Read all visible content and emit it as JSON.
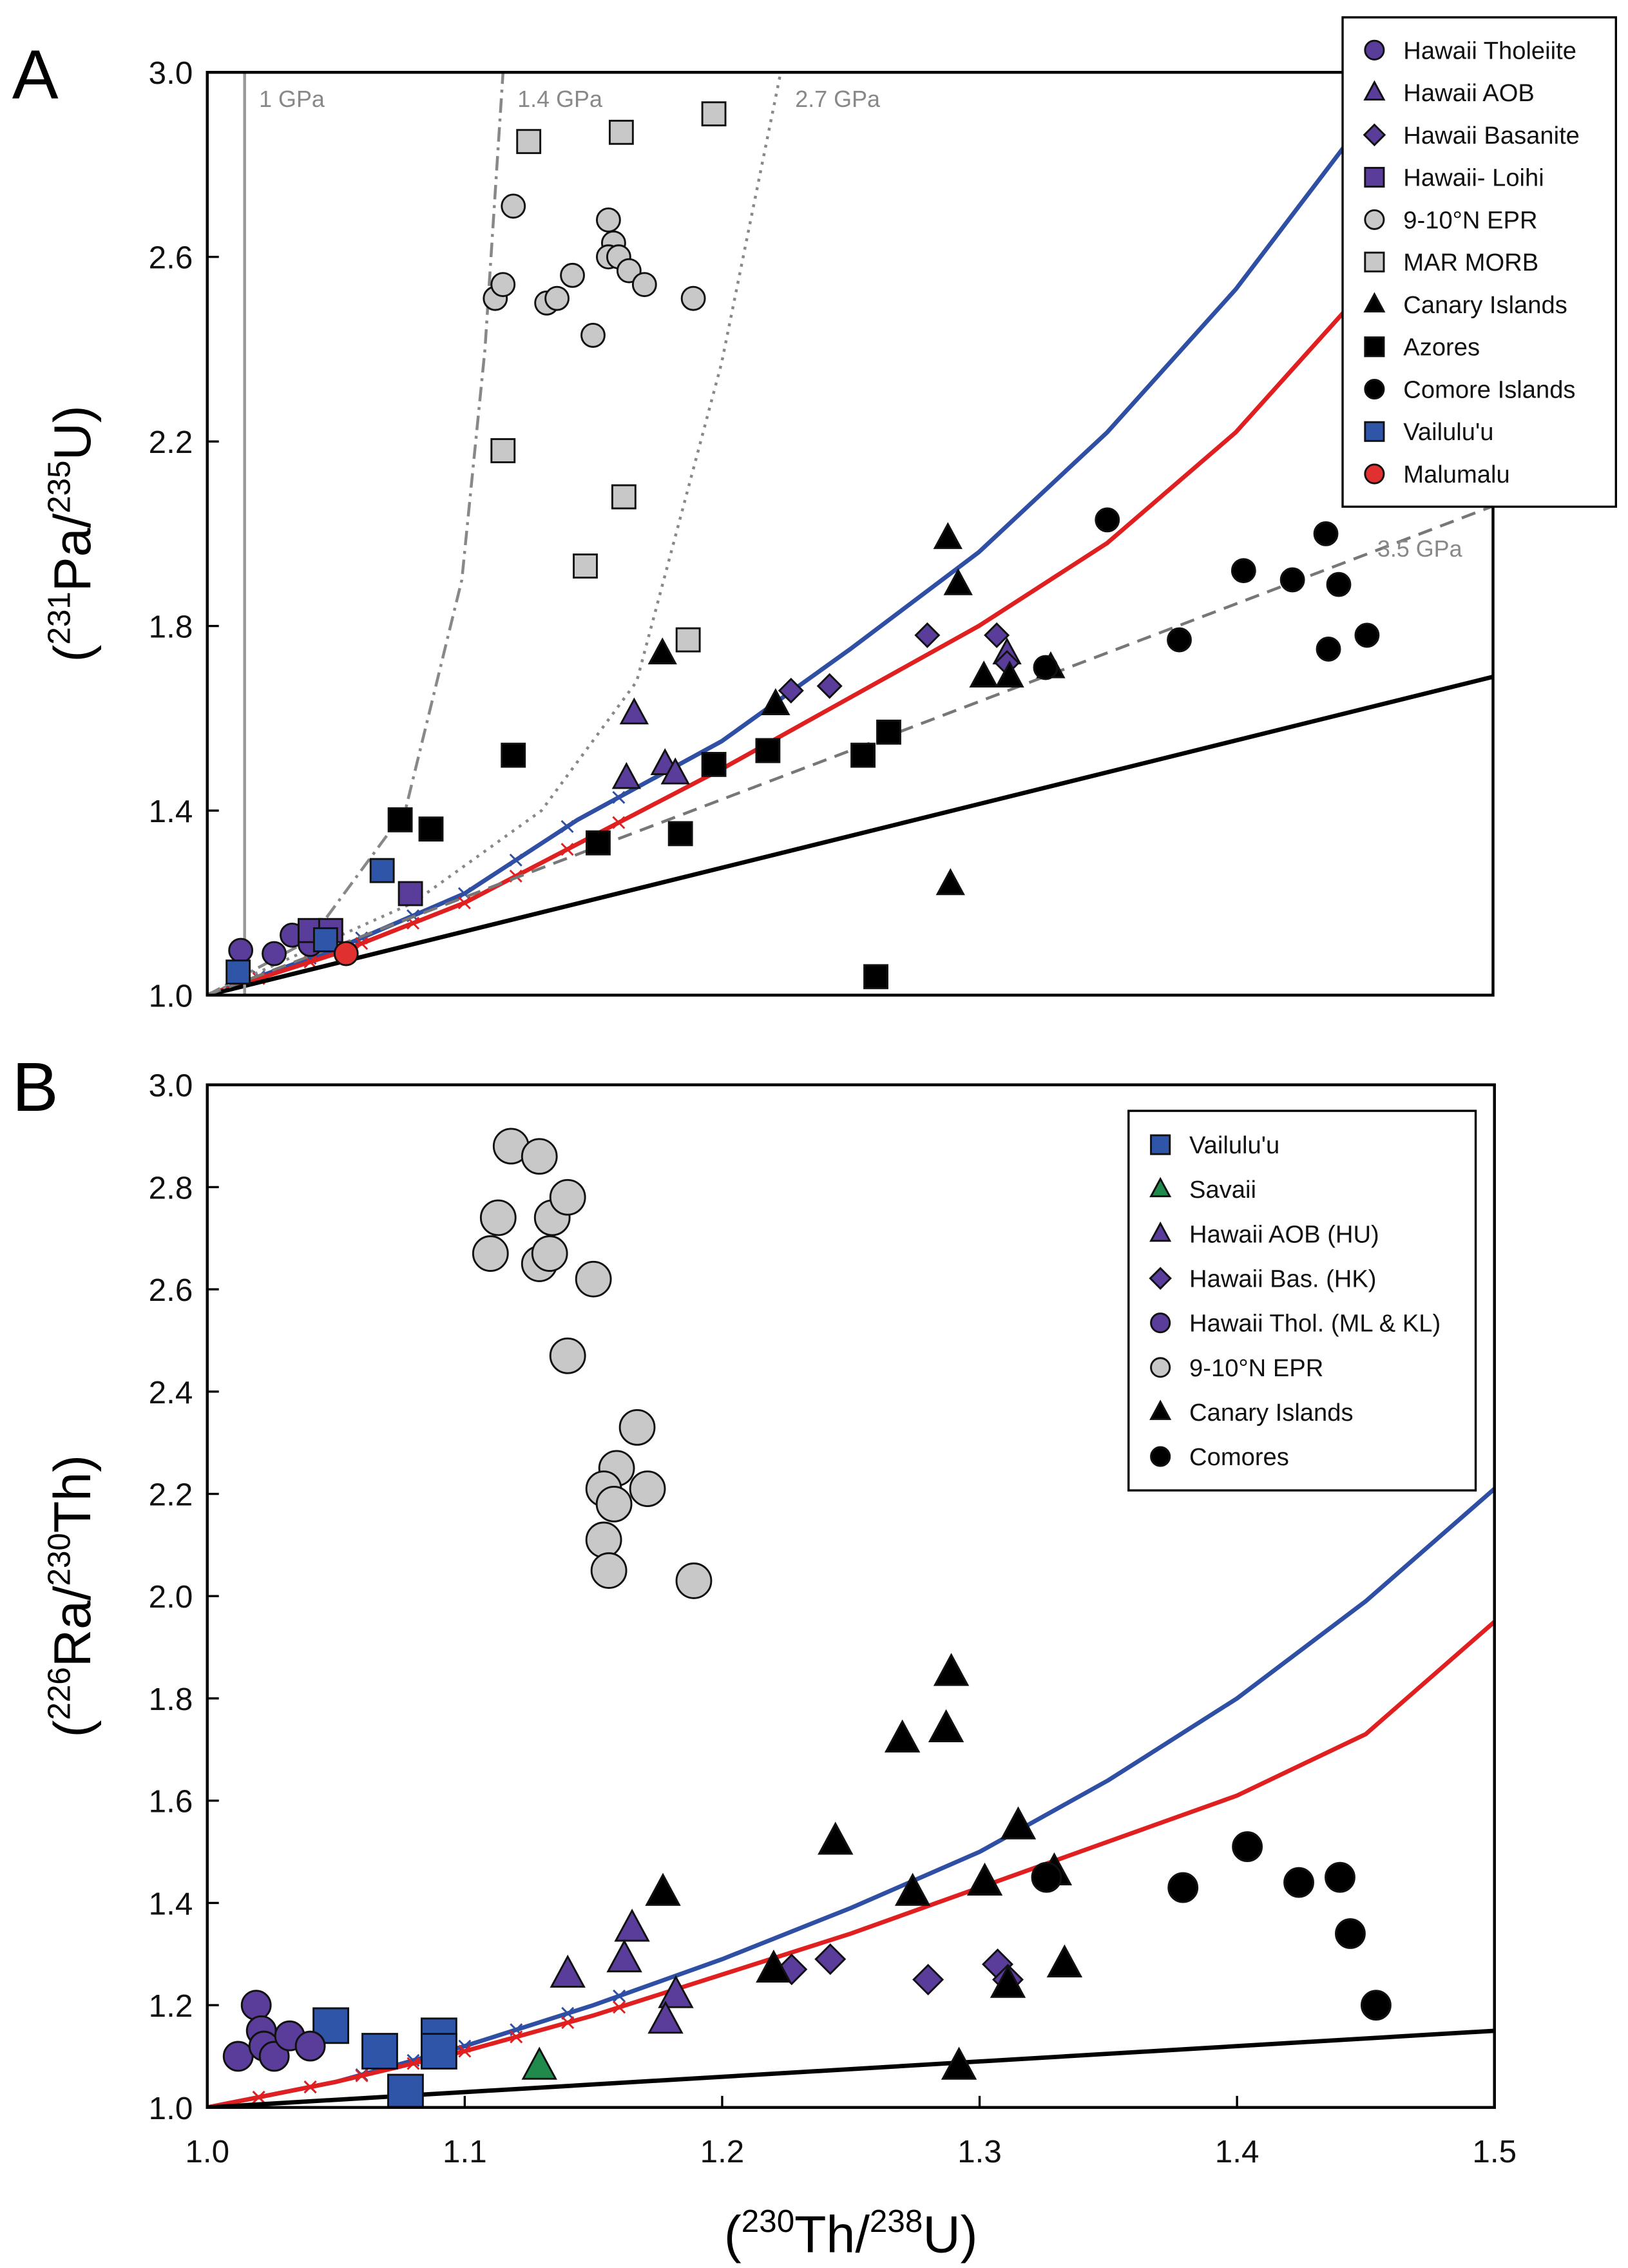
{
  "chart_data": [
    {
      "type": "scatter",
      "panel_label": "A",
      "xlim": [
        1.0,
        1.5
      ],
      "ylim": [
        1.0,
        3.0
      ],
      "yticks": [
        "1.0",
        "1.4",
        "1.8",
        "2.2",
        "2.6",
        "3.0"
      ],
      "ytick_values": [
        1.0,
        1.4,
        1.8,
        2.2,
        2.6,
        3.0
      ],
      "ylabel_parts": [
        "(",
        "231",
        "Pa",
        "/",
        "235",
        "U",
        ")"
      ],
      "legend_placement": "top-right-outside",
      "series": [
        {
          "name": "Hawaii Tholeiite",
          "marker": "circle",
          "color": "#5a3d9a",
          "points": [
            [
              1.013,
              1.097
            ],
            [
              1.026,
              1.09
            ],
            [
              1.033,
              1.13
            ],
            [
              1.04,
              1.11
            ]
          ]
        },
        {
          "name": "Hawaii AOB",
          "marker": "triangle",
          "color": "#5a3d9a",
          "points": [
            [
              1.166,
              1.61
            ],
            [
              1.163,
              1.47
            ],
            [
              1.178,
              1.5
            ],
            [
              1.182,
              1.48
            ],
            [
              1.311,
              1.74
            ]
          ]
        },
        {
          "name": "Hawaii Basanite",
          "marker": "diamond",
          "color": "#5a3d9a",
          "points": [
            [
              1.227,
              1.66
            ],
            [
              1.242,
              1.67
            ],
            [
              1.28,
              1.78
            ],
            [
              1.307,
              1.78
            ],
            [
              1.311,
              1.72
            ]
          ]
        },
        {
          "name": "Hawaii- Loihi",
          "marker": "square",
          "color": "#5a3d9a",
          "points": [
            [
              1.04,
              1.14
            ],
            [
              1.048,
              1.14
            ],
            [
              1.079,
              1.22
            ]
          ]
        },
        {
          "name": "9-10°N EPR",
          "marker": "circle",
          "color": "#c8c8c8",
          "points": [
            [
              1.119,
              2.71
            ],
            [
              1.112,
              2.51
            ],
            [
              1.115,
              2.54
            ],
            [
              1.132,
              2.5
            ],
            [
              1.136,
              2.51
            ],
            [
              1.142,
              2.56
            ],
            [
              1.15,
              2.43
            ],
            [
              1.156,
              2.68
            ],
            [
              1.158,
              2.63
            ],
            [
              1.156,
              2.6
            ],
            [
              1.16,
              2.6
            ],
            [
              1.164,
              2.57
            ],
            [
              1.17,
              2.54
            ],
            [
              1.189,
              2.51
            ]
          ]
        },
        {
          "name": "MAR MORB",
          "marker": "square",
          "color": "#c8c8c8",
          "points": [
            [
              1.125,
              2.85
            ],
            [
              1.161,
              2.87
            ],
            [
              1.197,
              2.91
            ],
            [
              1.115,
              2.18
            ],
            [
              1.162,
              2.08
            ],
            [
              1.147,
              1.93
            ],
            [
              1.187,
              1.77
            ]
          ]
        },
        {
          "name": "Canary Islands",
          "marker": "triangle",
          "color": "#000000",
          "points": [
            [
              1.288,
              1.99
            ],
            [
              1.292,
              1.89
            ],
            [
              1.221,
              1.63
            ],
            [
              1.302,
              1.69
            ],
            [
              1.312,
              1.69
            ],
            [
              1.328,
              1.71
            ],
            [
              1.289,
              1.24
            ],
            [
              1.177,
              1.74
            ]
          ]
        },
        {
          "name": "Azores",
          "marker": "square",
          "color": "#000000",
          "points": [
            [
              1.119,
              1.52
            ],
            [
              1.075,
              1.38
            ],
            [
              1.087,
              1.36
            ],
            [
              1.152,
              1.33
            ],
            [
              1.184,
              1.35
            ],
            [
              1.197,
              1.5
            ],
            [
              1.218,
              1.53
            ],
            [
              1.255,
              1.52
            ],
            [
              1.265,
              1.57
            ],
            [
              1.26,
              1.04
            ]
          ]
        },
        {
          "name": "Comore Islands",
          "marker": "circle",
          "color": "#000000",
          "points": [
            [
              1.35,
              2.03
            ],
            [
              1.403,
              1.92
            ],
            [
              1.435,
              2.0
            ],
            [
              1.422,
              1.9
            ],
            [
              1.44,
              1.89
            ],
            [
              1.378,
              1.77
            ],
            [
              1.436,
              1.75
            ],
            [
              1.451,
              1.78
            ],
            [
              1.326,
              1.71
            ]
          ]
        },
        {
          "name": "Vailulu'u",
          "marker": "square",
          "color": "#2e55a8",
          "points": [
            [
              1.012,
              1.05
            ],
            [
              1.068,
              1.27
            ],
            [
              1.046,
              1.12
            ]
          ]
        },
        {
          "name": "Malumalu",
          "marker": "circle",
          "color": "#e03030",
          "points": [
            [
              1.054,
              1.09
            ]
          ]
        }
      ],
      "curves": [
        {
          "name": "blue-model",
          "color": "#2e4fa3",
          "style": "solid",
          "points": [
            [
              1,
              1
            ],
            [
              1.05,
              1.1
            ],
            [
              1.1,
              1.22
            ],
            [
              1.144,
              1.38
            ],
            [
              1.2,
              1.55
            ],
            [
              1.25,
              1.75
            ],
            [
              1.3,
              1.96
            ],
            [
              1.35,
              2.22
            ],
            [
              1.4,
              2.53
            ],
            [
              1.445,
              2.86
            ]
          ]
        },
        {
          "name": "red-model",
          "color": "#e02020",
          "style": "solid",
          "points": [
            [
              1,
              1
            ],
            [
              1.05,
              1.09
            ],
            [
              1.1,
              1.2
            ],
            [
              1.2,
              1.49
            ],
            [
              1.3,
              1.8
            ],
            [
              1.35,
              1.98
            ],
            [
              1.4,
              2.22
            ],
            [
              1.45,
              2.53
            ]
          ]
        },
        {
          "name": "secular-line",
          "color": "#000000",
          "style": "solid",
          "points": [
            [
              1,
              1
            ],
            [
              1.5,
              1.69
            ]
          ]
        },
        {
          "name": "3.5 GPa",
          "label": "3.5 GPa",
          "color": "#777777",
          "style": "dash",
          "points": [
            [
              1,
              1
            ],
            [
              1.5,
              2.06
            ]
          ]
        },
        {
          "name": "1 GPa",
          "label": "1 GPa",
          "color": "#999999",
          "style": "solid",
          "points": [
            [
              1.0145,
              1.0
            ],
            [
              1.0145,
              3.0
            ]
          ]
        },
        {
          "name": "1.4 GPa",
          "label": "1.4 GPa",
          "color": "#888888",
          "style": "dashdot",
          "points": [
            [
              1,
              1
            ],
            [
              1.04,
              1.12
            ],
            [
              1.077,
              1.4
            ],
            [
              1.099,
              1.9
            ],
            [
              1.108,
              2.4
            ],
            [
              1.115,
              3.0
            ]
          ]
        },
        {
          "name": "2.7 GPa",
          "label": "2.7 GPa",
          "color": "#888888",
          "style": "dot",
          "points": [
            [
              1,
              1
            ],
            [
              1.08,
              1.2
            ],
            [
              1.13,
              1.4
            ],
            [
              1.167,
              1.68
            ],
            [
              1.2,
              2.37
            ],
            [
              1.223,
              3.0
            ]
          ]
        }
      ]
    },
    {
      "type": "scatter",
      "panel_label": "B",
      "xlim": [
        1.0,
        1.5
      ],
      "ylim": [
        1.0,
        3.0
      ],
      "xticks": [
        "1.0",
        "1.1",
        "1.2",
        "1.3",
        "1.4",
        "1.5"
      ],
      "xtick_values": [
        1.0,
        1.1,
        1.2,
        1.3,
        1.4,
        1.5
      ],
      "yticks": [
        "1.0",
        "1.2",
        "1.4",
        "1.6",
        "1.8",
        "2.0",
        "2.2",
        "2.4",
        "2.6",
        "2.8",
        "3.0"
      ],
      "ytick_values": [
        1.0,
        1.2,
        1.4,
        1.6,
        1.8,
        2.0,
        2.2,
        2.4,
        2.6,
        2.8,
        3.0
      ],
      "xlabel_parts": [
        "(",
        "230",
        "Th",
        "/",
        "238",
        "U",
        ")"
      ],
      "ylabel_parts": [
        "(",
        "226",
        "Ra",
        "/",
        "230",
        "Th",
        ")"
      ],
      "legend_placement": "top-right",
      "series": [
        {
          "name": "Vailulu'u",
          "marker": "square",
          "color": "#2e55a8",
          "points": [
            [
              1.048,
              1.16
            ],
            [
              1.067,
              1.11
            ],
            [
              1.077,
              1.03
            ],
            [
              1.09,
              1.14
            ],
            [
              1.09,
              1.11
            ]
          ]
        },
        {
          "name": "Savaii",
          "marker": "triangle",
          "color": "#1f8a4c",
          "points": [
            [
              1.129,
              1.08
            ]
          ]
        },
        {
          "name": "Hawaii AOB (HU)",
          "marker": "triangle",
          "color": "#5a3d9a",
          "points": [
            [
              1.14,
              1.26
            ],
            [
              1.165,
              1.35
            ],
            [
              1.162,
              1.29
            ],
            [
              1.182,
              1.22
            ],
            [
              1.178,
              1.17
            ]
          ]
        },
        {
          "name": "Hawaii Bas. (HK)",
          "marker": "diamond",
          "color": "#5a3d9a",
          "points": [
            [
              1.227,
              1.27
            ],
            [
              1.242,
              1.29
            ],
            [
              1.28,
              1.25
            ],
            [
              1.307,
              1.28
            ],
            [
              1.311,
              1.25
            ]
          ]
        },
        {
          "name": "Hawaii Thol. (ML & KL)",
          "marker": "circle",
          "color": "#5a3d9a",
          "points": [
            [
              1.019,
              1.2
            ],
            [
              1.021,
              1.15
            ],
            [
              1.012,
              1.1
            ],
            [
              1.022,
              1.12
            ],
            [
              1.026,
              1.1
            ],
            [
              1.032,
              1.14
            ],
            [
              1.04,
              1.12
            ]
          ]
        },
        {
          "name": "9-10°N EPR",
          "marker": "circle",
          "color": "#c8c8c8",
          "points": [
            [
              1.118,
              2.88
            ],
            [
              1.129,
              2.86
            ],
            [
              1.113,
              2.74
            ],
            [
              1.134,
              2.74
            ],
            [
              1.14,
              2.78
            ],
            [
              1.11,
              2.67
            ],
            [
              1.129,
              2.65
            ],
            [
              1.133,
              2.67
            ],
            [
              1.15,
              2.62
            ],
            [
              1.14,
              2.47
            ],
            [
              1.167,
              2.33
            ],
            [
              1.159,
              2.25
            ],
            [
              1.154,
              2.21
            ],
            [
              1.171,
              2.21
            ],
            [
              1.158,
              2.18
            ],
            [
              1.154,
              2.11
            ],
            [
              1.156,
              2.05
            ],
            [
              1.189,
              2.03
            ]
          ]
        },
        {
          "name": "Canary Islands",
          "marker": "triangle",
          "color": "#000000",
          "points": [
            [
              1.289,
              1.85
            ],
            [
              1.287,
              1.74
            ],
            [
              1.27,
              1.72
            ],
            [
              1.244,
              1.52
            ],
            [
              1.315,
              1.55
            ],
            [
              1.177,
              1.42
            ],
            [
              1.274,
              1.42
            ],
            [
              1.302,
              1.44
            ],
            [
              1.329,
              1.46
            ],
            [
              1.22,
              1.27
            ],
            [
              1.333,
              1.28
            ],
            [
              1.311,
              1.24
            ],
            [
              1.292,
              1.08
            ]
          ]
        },
        {
          "name": "Comores",
          "marker": "circle",
          "color": "#000000",
          "points": [
            [
              1.404,
              1.51
            ],
            [
              1.379,
              1.43
            ],
            [
              1.424,
              1.44
            ],
            [
              1.44,
              1.45
            ],
            [
              1.444,
              1.34
            ],
            [
              1.454,
              1.2
            ],
            [
              1.326,
              1.45
            ]
          ]
        }
      ],
      "curves": [
        {
          "name": "blue-model",
          "color": "#2e4fa3",
          "style": "solid",
          "points": [
            [
              1,
              1
            ],
            [
              1.05,
              1.05
            ],
            [
              1.1,
              1.12
            ],
            [
              1.15,
              1.2
            ],
            [
              1.2,
              1.29
            ],
            [
              1.25,
              1.39
            ],
            [
              1.3,
              1.5
            ],
            [
              1.35,
              1.64
            ],
            [
              1.4,
              1.8
            ],
            [
              1.45,
              1.99
            ],
            [
              1.5,
              2.21
            ]
          ]
        },
        {
          "name": "red-model",
          "color": "#e02020",
          "style": "solid",
          "points": [
            [
              1,
              1
            ],
            [
              1.05,
              1.05
            ],
            [
              1.1,
              1.11
            ],
            [
              1.15,
              1.18
            ],
            [
              1.2,
              1.26
            ],
            [
              1.25,
              1.34
            ],
            [
              1.3,
              1.43
            ],
            [
              1.35,
              1.52
            ],
            [
              1.4,
              1.61
            ],
            [
              1.45,
              1.73
            ],
            [
              1.5,
              1.95
            ]
          ]
        },
        {
          "name": "secular-line",
          "color": "#000000",
          "style": "solid",
          "points": [
            [
              1,
              1
            ],
            [
              1.5,
              1.15
            ]
          ]
        }
      ]
    }
  ]
}
